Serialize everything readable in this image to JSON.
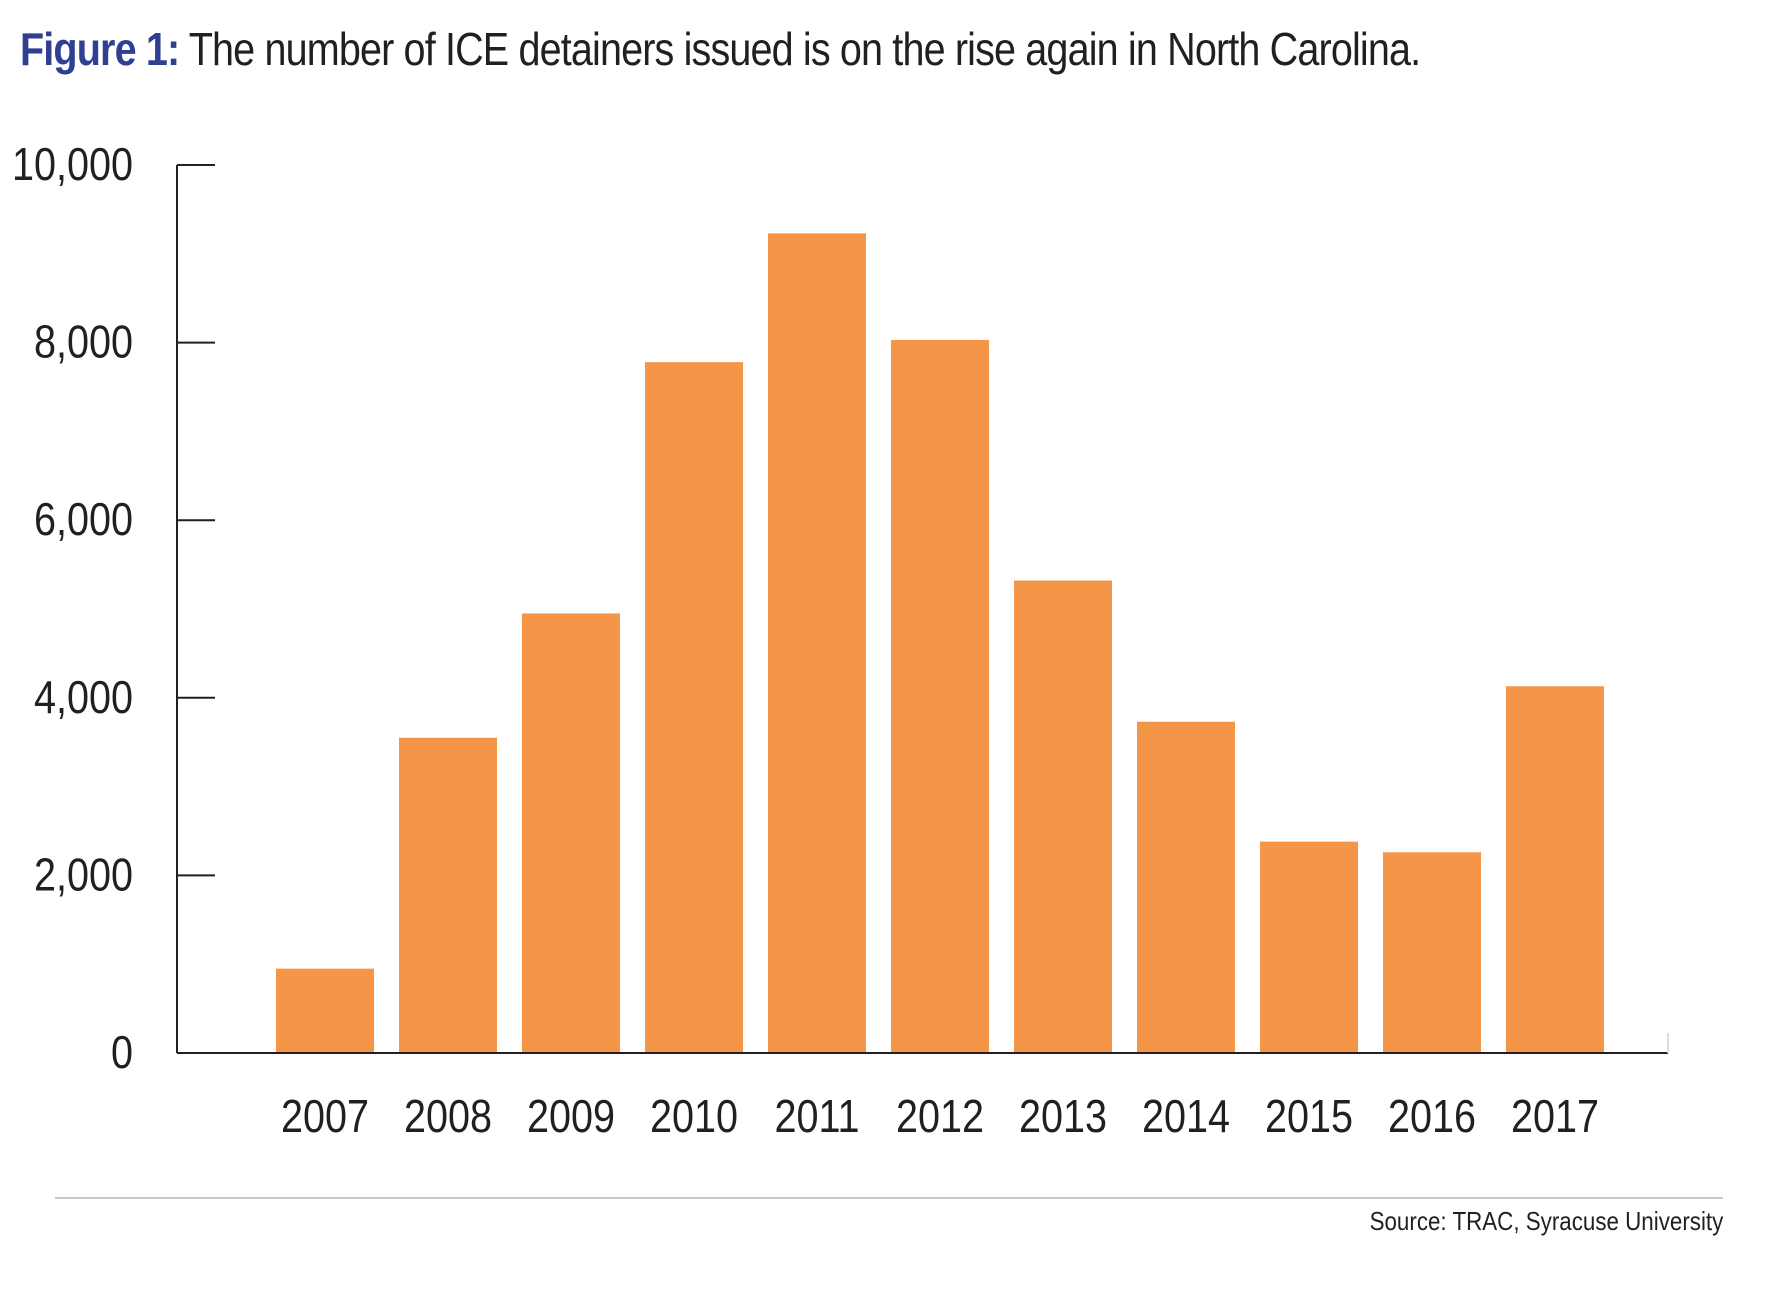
{
  "header": {
    "title_prefix": "Figure 1:",
    "title_text": "The number of ICE detainers issued is on the rise again in North Carolina."
  },
  "footer": {
    "source": "Source: TRAC, Syracuse University"
  },
  "colors": {
    "bar": "#f59547",
    "title_accent": "#2e3f94",
    "axis": "#231f20"
  },
  "chart_data": {
    "type": "bar",
    "title": "The number of ICE detainers issued is on the rise again in North Carolina.",
    "xlabel": "",
    "ylabel": "",
    "categories": [
      "2007",
      "2008",
      "2009",
      "2010",
      "2011",
      "2012",
      "2013",
      "2014",
      "2015",
      "2016",
      "2017"
    ],
    "values": [
      950,
      3550,
      4950,
      7780,
      9230,
      8030,
      5320,
      3730,
      2380,
      2260,
      4130
    ],
    "ylim": [
      0,
      10000
    ],
    "yticks": [
      0,
      2000,
      4000,
      6000,
      8000,
      10000
    ],
    "ytick_labels": [
      "0",
      "2,000",
      "4,000",
      "6,000",
      "8,000",
      "10,000"
    ],
    "grid": false,
    "legend": "none"
  }
}
